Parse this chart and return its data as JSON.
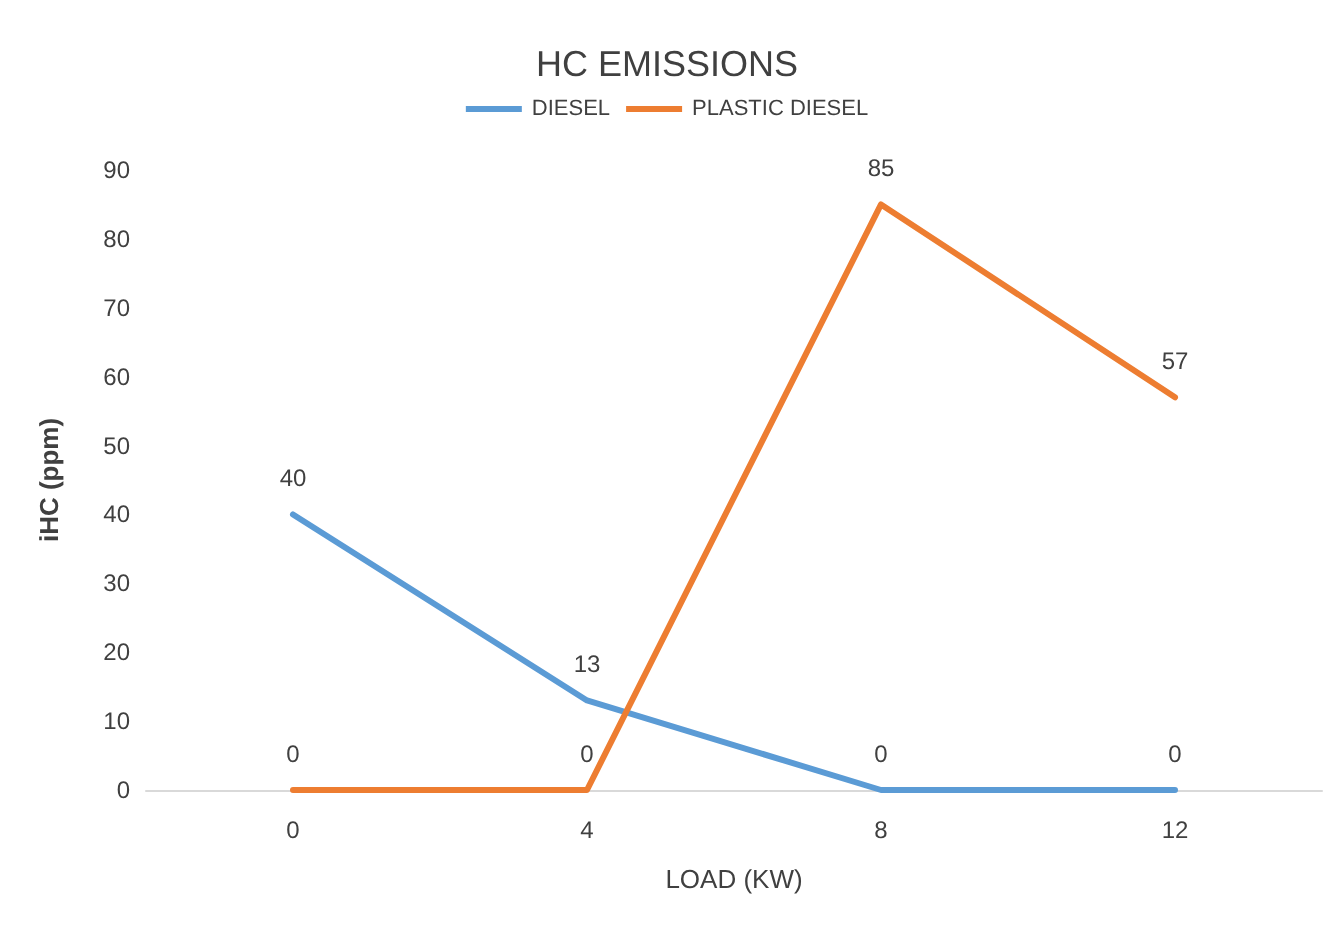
{
  "chart_data": {
    "type": "line",
    "title": "HC EMISSIONS",
    "xlabel": "LOAD (KW)",
    "ylabel": "iHC (ppm)",
    "categories": [
      "0",
      "4",
      "8",
      "12"
    ],
    "series": [
      {
        "name": "DIESEL",
        "color": "#5b9bd5",
        "values": [
          40,
          13,
          0,
          0
        ]
      },
      {
        "name": "PLASTIC DIESEL",
        "color": "#ed7d31",
        "values": [
          0,
          0,
          85,
          57
        ]
      }
    ],
    "ylim": [
      0,
      90
    ],
    "yticks": [
      0,
      10,
      20,
      30,
      40,
      50,
      60,
      70,
      80,
      90
    ],
    "grid": false,
    "legend": "top",
    "marker": "none",
    "line_style": "solid",
    "data_labels": true
  }
}
